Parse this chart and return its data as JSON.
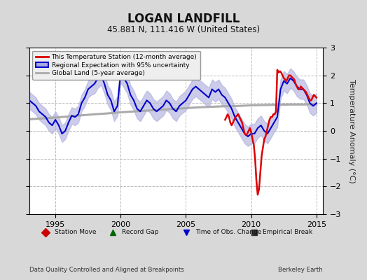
{
  "title": "LOGAN LANDFILL",
  "subtitle": "45.881 N, 111.416 W (United States)",
  "xlabel_left": "Data Quality Controlled and Aligned at Breakpoints",
  "xlabel_right": "Berkeley Earth",
  "ylabel": "Temperature Anomaly (°C)",
  "xlim": [
    1993.0,
    2015.5
  ],
  "ylim": [
    -3,
    3
  ],
  "yticks": [
    -3,
    -2,
    -1,
    0,
    1,
    2,
    3
  ],
  "xticks": [
    1995,
    2000,
    2005,
    2010,
    2015
  ],
  "bg_color": "#d8d8d8",
  "plot_bg_color": "#ffffff",
  "grid_color": "#bbbbbb",
  "regional_color": "#0000cc",
  "regional_fill_color": "#aaaadd",
  "station_color": "#dd0000",
  "global_color": "#aaaaaa",
  "legend_items": [
    {
      "label": "This Temperature Station (12-month average)",
      "color": "#dd0000",
      "lw": 2
    },
    {
      "label": "Regional Expectation with 95% uncertainty",
      "color": "#0000cc",
      "lw": 2
    },
    {
      "label": "Global Land (5-year average)",
      "color": "#aaaaaa",
      "lw": 2
    }
  ],
  "bottom_legend": [
    {
      "label": "Station Move",
      "marker": "D",
      "color": "#cc0000"
    },
    {
      "label": "Record Gap",
      "marker": "^",
      "color": "#006600"
    },
    {
      "label": "Time of Obs. Change",
      "marker": "v",
      "color": "#0000cc"
    },
    {
      "label": "Empirical Break",
      "marker": "s",
      "color": "#333333"
    }
  ],
  "regional_x": [
    1993.0,
    1993.25,
    1993.5,
    1993.75,
    1994.0,
    1994.25,
    1994.5,
    1994.75,
    1995.0,
    1995.25,
    1995.5,
    1995.75,
    1996.0,
    1996.25,
    1996.5,
    1996.75,
    1997.0,
    1997.25,
    1997.5,
    1997.75,
    1998.0,
    1998.25,
    1998.5,
    1998.75,
    1999.0,
    1999.25,
    1999.5,
    1999.75,
    2000.0,
    2000.25,
    2000.5,
    2000.75,
    2001.0,
    2001.25,
    2001.5,
    2001.75,
    2002.0,
    2002.25,
    2002.5,
    2002.75,
    2003.0,
    2003.25,
    2003.5,
    2003.75,
    2004.0,
    2004.25,
    2004.5,
    2004.75,
    2005.0,
    2005.25,
    2005.5,
    2005.75,
    2006.0,
    2006.25,
    2006.5,
    2006.75,
    2007.0,
    2007.25,
    2007.5,
    2007.75,
    2008.0,
    2008.25,
    2008.5,
    2008.75,
    2009.0,
    2009.25,
    2009.5,
    2009.75,
    2010.0,
    2010.25,
    2010.5,
    2010.75,
    2011.0,
    2011.25,
    2011.5,
    2011.75,
    2012.0,
    2012.25,
    2012.5,
    2012.75,
    2013.0,
    2013.25,
    2013.5,
    2013.75,
    2014.0,
    2014.25,
    2014.5,
    2014.75,
    2015.0
  ],
  "regional_y": [
    1.1,
    1.0,
    0.9,
    0.7,
    0.6,
    0.5,
    0.3,
    0.2,
    0.4,
    0.2,
    -0.1,
    0.0,
    0.3,
    0.55,
    0.5,
    0.6,
    1.0,
    1.2,
    1.5,
    1.6,
    1.7,
    1.9,
    2.0,
    1.7,
    1.3,
    1.1,
    0.7,
    0.9,
    2.1,
    1.9,
    1.7,
    1.3,
    1.1,
    0.8,
    0.7,
    0.9,
    1.1,
    1.0,
    0.8,
    0.7,
    0.8,
    0.9,
    1.1,
    1.0,
    0.8,
    0.7,
    0.9,
    1.0,
    1.1,
    1.3,
    1.5,
    1.6,
    1.5,
    1.4,
    1.3,
    1.2,
    1.5,
    1.4,
    1.5,
    1.3,
    1.2,
    1.0,
    0.8,
    0.5,
    0.3,
    0.1,
    -0.1,
    -0.2,
    -0.1,
    -0.1,
    0.1,
    0.2,
    0.0,
    -0.1,
    0.1,
    0.3,
    0.5,
    1.5,
    1.8,
    1.7,
    1.9,
    1.8,
    1.6,
    1.5,
    1.5,
    1.3,
    1.0,
    0.9,
    1.0
  ],
  "regional_upper": [
    1.4,
    1.3,
    1.2,
    1.0,
    0.9,
    0.8,
    0.6,
    0.5,
    0.7,
    0.5,
    0.2,
    0.3,
    0.6,
    0.85,
    0.8,
    0.9,
    1.3,
    1.5,
    1.8,
    1.9,
    2.05,
    2.25,
    2.35,
    2.05,
    1.65,
    1.45,
    1.05,
    1.25,
    2.45,
    2.25,
    2.05,
    1.65,
    1.45,
    1.15,
    1.05,
    1.25,
    1.45,
    1.35,
    1.15,
    1.05,
    1.15,
    1.25,
    1.45,
    1.35,
    1.15,
    1.05,
    1.25,
    1.35,
    1.45,
    1.65,
    1.85,
    1.95,
    1.85,
    1.75,
    1.65,
    1.55,
    1.85,
    1.75,
    1.85,
    1.65,
    1.55,
    1.35,
    1.15,
    0.85,
    0.65,
    0.45,
    0.25,
    0.15,
    0.25,
    0.25,
    0.45,
    0.55,
    0.35,
    0.25,
    0.45,
    0.65,
    0.85,
    1.85,
    2.15,
    2.05,
    2.25,
    2.15,
    1.95,
    1.85,
    1.85,
    1.65,
    1.35,
    1.25,
    1.35
  ],
  "regional_lower": [
    0.8,
    0.7,
    0.6,
    0.4,
    0.3,
    0.2,
    0.0,
    -0.1,
    0.1,
    -0.1,
    -0.4,
    -0.3,
    0.0,
    0.25,
    0.2,
    0.3,
    0.7,
    0.9,
    1.2,
    1.3,
    1.35,
    1.55,
    1.65,
    1.35,
    0.95,
    0.75,
    0.35,
    0.55,
    1.75,
    1.55,
    1.35,
    0.95,
    0.75,
    0.45,
    0.35,
    0.55,
    0.75,
    0.65,
    0.45,
    0.35,
    0.45,
    0.55,
    0.75,
    0.65,
    0.45,
    0.35,
    0.55,
    0.65,
    0.75,
    0.95,
    1.15,
    1.25,
    1.15,
    1.05,
    0.95,
    0.85,
    1.15,
    1.05,
    1.15,
    0.95,
    0.85,
    0.65,
    0.45,
    0.15,
    -0.05,
    -0.25,
    -0.45,
    -0.55,
    -0.45,
    -0.45,
    -0.25,
    -0.15,
    -0.35,
    -0.45,
    -0.25,
    -0.05,
    0.15,
    1.15,
    1.45,
    1.35,
    1.55,
    1.45,
    1.25,
    1.15,
    1.15,
    0.95,
    0.65,
    0.55,
    0.65
  ],
  "global_x": [
    1993.0,
    1994.0,
    1995.0,
    1996.0,
    1997.0,
    1998.0,
    1999.0,
    2000.0,
    2001.0,
    2002.0,
    2003.0,
    2004.0,
    2005.0,
    2006.0,
    2007.0,
    2008.0,
    2009.0,
    2010.0,
    2011.0,
    2012.0,
    2013.0,
    2014.0,
    2015.0
  ],
  "global_y": [
    0.42,
    0.45,
    0.48,
    0.52,
    0.56,
    0.6,
    0.63,
    0.67,
    0.7,
    0.73,
    0.76,
    0.79,
    0.82,
    0.85,
    0.87,
    0.89,
    0.9,
    0.92,
    0.93,
    0.94,
    0.95,
    0.95,
    0.96
  ],
  "station_x": [
    2008.0,
    2008.1,
    2008.2,
    2008.3,
    2008.4,
    2008.5,
    2008.6,
    2008.7,
    2008.8,
    2008.9,
    2009.0,
    2009.1,
    2009.2,
    2009.3,
    2009.4,
    2009.5,
    2009.6,
    2009.7,
    2009.8,
    2009.9,
    2010.0,
    2010.1,
    2010.2,
    2010.3,
    2010.4,
    2010.5,
    2010.6,
    2010.7,
    2010.8,
    2010.9,
    2011.0,
    2011.1,
    2011.2,
    2011.3,
    2011.4,
    2011.5,
    2011.6,
    2011.7,
    2011.8,
    2011.9,
    2012.0,
    2012.1,
    2012.2,
    2012.3,
    2012.4,
    2012.5,
    2012.6,
    2012.7,
    2012.8,
    2012.9,
    2013.0,
    2013.1,
    2013.2,
    2013.3,
    2013.4,
    2013.5,
    2013.6,
    2013.7,
    2013.8,
    2013.9,
    2014.0,
    2014.1,
    2014.2,
    2014.3,
    2014.4,
    2014.5,
    2014.6,
    2014.7,
    2014.8,
    2014.9,
    2015.0
  ],
  "station_y": [
    0.4,
    0.5,
    0.6,
    0.5,
    0.3,
    0.2,
    0.3,
    0.4,
    0.5,
    0.55,
    0.6,
    0.5,
    0.4,
    0.3,
    0.1,
    -0.1,
    -0.15,
    -0.1,
    0.0,
    0.1,
    -0.05,
    -0.3,
    -0.5,
    -1.0,
    -1.8,
    -2.3,
    -2.1,
    -1.5,
    -0.9,
    -0.6,
    -0.3,
    -0.2,
    0.0,
    0.2,
    0.4,
    0.5,
    0.5,
    0.6,
    0.6,
    0.7,
    2.2,
    2.1,
    2.15,
    2.1,
    2.0,
    1.9,
    1.85,
    1.8,
    1.9,
    2.0,
    2.0,
    1.95,
    1.9,
    1.85,
    1.7,
    1.6,
    1.5,
    1.5,
    1.6,
    1.55,
    1.5,
    1.45,
    1.4,
    1.3,
    1.2,
    1.1,
    1.1,
    1.2,
    1.3,
    1.25,
    1.2
  ]
}
